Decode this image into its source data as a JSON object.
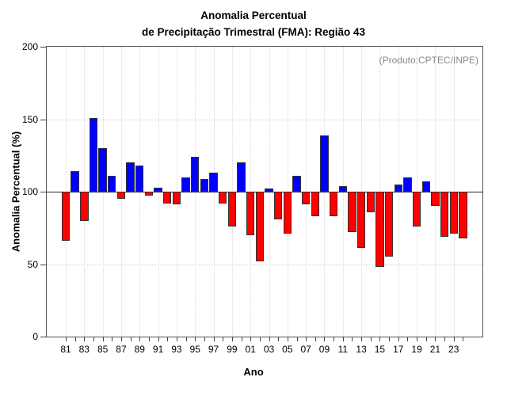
{
  "chart_data": {
    "type": "bar",
    "title": "Anomalia Percentual",
    "subtitle": "de Precipitação Trimestral (FMA): Região 43",
    "annotation": "(Produto:CPTEC/INPE)",
    "xlabel": "Ano",
    "ylabel": "Anomalia Percentual (%)",
    "ylim": [
      0,
      200
    ],
    "y_ticks": [
      0,
      50,
      100,
      150,
      200
    ],
    "gridlines_y": [
      50,
      150
    ],
    "baseline": 100,
    "legend": "none",
    "bar_colors": {
      "above": "#0000ff",
      "below": "#ff0000"
    },
    "categories": [
      "81",
      "82",
      "83",
      "84",
      "85",
      "86",
      "87",
      "88",
      "89",
      "90",
      "91",
      "92",
      "93",
      "94",
      "95",
      "96",
      "97",
      "98",
      "99",
      "00",
      "01",
      "02",
      "03",
      "04",
      "05",
      "06",
      "07",
      "08",
      "09",
      "10",
      "11",
      "12",
      "13",
      "14",
      "15",
      "16",
      "17",
      "18",
      "19",
      "20",
      "21",
      "22",
      "23",
      "24"
    ],
    "x_labels_shown": [
      "81",
      "83",
      "85",
      "87",
      "89",
      "91",
      "93",
      "95",
      "97",
      "99",
      "01",
      "03",
      "05",
      "07",
      "09",
      "11",
      "13",
      "15",
      "17",
      "19",
      "21",
      "23"
    ],
    "values": [
      66,
      114,
      80,
      151,
      130,
      111,
      95,
      120,
      118,
      97,
      103,
      92,
      91,
      110,
      124,
      109,
      113,
      92,
      76,
      120,
      70,
      52,
      102,
      81,
      71,
      111,
      91,
      83,
      139,
      83,
      104,
      72,
      61,
      86,
      48,
      55,
      105,
      110,
      76,
      107,
      90,
      69,
      71,
      68
    ]
  }
}
